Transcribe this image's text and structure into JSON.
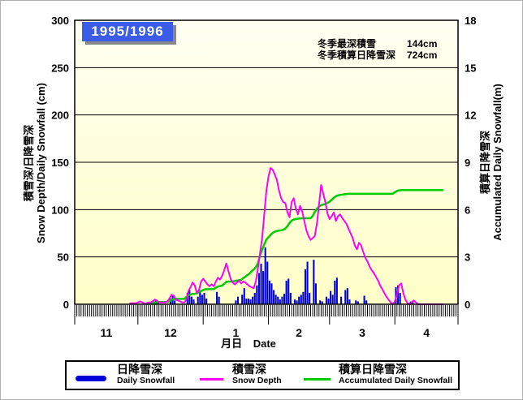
{
  "title": "1995/1996",
  "annotation": {
    "rows": [
      {
        "label": "冬季最深積雪",
        "value": "144cm"
      },
      {
        "label": "冬季積算日降雪深",
        "value": "724cm"
      }
    ]
  },
  "axes": {
    "left": {
      "title_jp": "積雪深/日降雪深",
      "title_en": "Snow Depth/Daily Snowfall (cm)",
      "ticks": [
        0,
        50,
        100,
        150,
        200,
        250,
        300
      ]
    },
    "right": {
      "title_jp": "積算日降雪深",
      "title_en": "Accumulated Daily Snowfall(m)",
      "ticks": [
        0,
        3,
        6,
        9,
        12,
        15,
        18
      ]
    },
    "x": {
      "label_jp": "月日",
      "label_en": "Date",
      "month_labels": [
        "11",
        "12",
        "1",
        "2",
        "3",
        "4"
      ]
    }
  },
  "chart_data": {
    "type": "composite",
    "title": "1995/1996",
    "x_unit": "day index from Nov 1",
    "days": 182,
    "month_boundaries": [
      0,
      30,
      61,
      92,
      121,
      152,
      182
    ],
    "month_labels": [
      "11",
      "12",
      "1",
      "2",
      "3",
      "4"
    ],
    "ylim_left": [
      0,
      300
    ],
    "ylim_right": [
      0,
      18
    ],
    "grid": "horizontal",
    "legend_position": "bottom",
    "plot_bg_top": "#fffff2",
    "plot_bg_bottom": "#ffffc8",
    "winter_max_snow_depth_cm": 144,
    "winter_total_daily_snowfall_cm": 724,
    "series": [
      {
        "name_jp": "日降雪深",
        "name_en": "Daily Snowfall",
        "type": "bar",
        "axis": "left",
        "unit": "cm",
        "color": "#0000d8",
        "values_by_day": {
          "34": 2,
          "35": 2,
          "37": 3,
          "38": 4,
          "39": 2,
          "45": 6,
          "46": 9,
          "47": 4,
          "53": 12,
          "54": 15,
          "55": 8,
          "56": 5,
          "58": 8,
          "59": 15,
          "60": 10,
          "61": 12,
          "62": 6,
          "67": 13,
          "68": 8,
          "76": 4,
          "77": 8,
          "79": 10,
          "80": 17,
          "81": 6,
          "82": 6,
          "83": 5,
          "84": 8,
          "85": 12,
          "86": 20,
          "87": 33,
          "88": 43,
          "89": 35,
          "90": 60,
          "91": 45,
          "92": 25,
          "93": 22,
          "94": 15,
          "95": 10,
          "96": 8,
          "97": 5,
          "98": 8,
          "99": 11,
          "100": 25,
          "101": 27,
          "102": 12,
          "104": 5,
          "105": 4,
          "106": 8,
          "107": 10,
          "108": 13,
          "109": 37,
          "110": 45,
          "111": 12,
          "113": 47,
          "114": 22,
          "116": 4,
          "117": 3,
          "119": 8,
          "120": 6,
          "121": 14,
          "122": 10,
          "123": 25,
          "124": 28,
          "126": 8,
          "128": 15,
          "129": 17,
          "130": 5,
          "133": 4,
          "134": 3,
          "137": 9,
          "138": 4,
          "152": 18,
          "153": 20,
          "154": 12,
          "159": 3,
          "160": 2
        }
      },
      {
        "name_jp": "積雪深",
        "name_en": "Snow Depth",
        "type": "line",
        "axis": "left",
        "unit": "cm",
        "color": "#ff00ff",
        "start_day": 26,
        "values": [
          1,
          1,
          1,
          1,
          2,
          3,
          2,
          1,
          1,
          2,
          2,
          3,
          5,
          4,
          2,
          2,
          2,
          2,
          3,
          6,
          10,
          9,
          5,
          4,
          3,
          2,
          2,
          5,
          14,
          18,
          23,
          20,
          12,
          15,
          24,
          27,
          24,
          21,
          19,
          21,
          19,
          24,
          28,
          26,
          30,
          36,
          43,
          35,
          27,
          23,
          21,
          23,
          25,
          22,
          24,
          23,
          21,
          19,
          18,
          17,
          24,
          38,
          54,
          70,
          95,
          120,
          135,
          144,
          142,
          137,
          131,
          120,
          112,
          108,
          107,
          97,
          92,
          108,
          112,
          101,
          95,
          104,
          98,
          88,
          78,
          72,
          68,
          70,
          72,
          85,
          105,
          126,
          117,
          108,
          96,
          90,
          93,
          97,
          88,
          93,
          95,
          91,
          88,
          85,
          80,
          75,
          70,
          62,
          58,
          65,
          62,
          55,
          49,
          45,
          40,
          36,
          33,
          29,
          25,
          20,
          16,
          12,
          8,
          5,
          2,
          0,
          3,
          10,
          20,
          22,
          12,
          5,
          1,
          0,
          2,
          4,
          2,
          0,
          0,
          0,
          0,
          0,
          0,
          0,
          0,
          0,
          0,
          0,
          0,
          0
        ]
      },
      {
        "name_jp": "積算日降雪深",
        "name_en": "Accumulated Daily Snowfall",
        "type": "line",
        "axis": "right",
        "unit": "m",
        "color": "#00cc00",
        "start_day": 34,
        "values": [
          0.02,
          0.04,
          0.04,
          0.07,
          0.11,
          0.13,
          0.14,
          0.14,
          0.14,
          0.14,
          0.14,
          0.2,
          0.29,
          0.33,
          0.34,
          0.34,
          0.34,
          0.34,
          0.34,
          0.46,
          0.56,
          0.62,
          0.66,
          0.66,
          0.7,
          0.78,
          0.84,
          0.9,
          0.95,
          0.95,
          0.96,
          0.96,
          0.96,
          1.05,
          1.12,
          1.15,
          1.18,
          1.3,
          1.42,
          1.44,
          1.44,
          1.45,
          1.47,
          1.5,
          1.52,
          1.55,
          1.65,
          1.75,
          1.85,
          1.95,
          2.1,
          2.2,
          2.35,
          2.6,
          3.1,
          3.45,
          3.8,
          4.1,
          4.25,
          4.4,
          4.52,
          4.6,
          4.65,
          4.67,
          4.69,
          4.72,
          4.8,
          4.95,
          5.15,
          5.3,
          5.37,
          5.4,
          5.42,
          5.44,
          5.45,
          5.45,
          5.45,
          5.45,
          5.45,
          5.6,
          5.85,
          6.05,
          6.2,
          6.28,
          6.32,
          6.35,
          6.42,
          6.5,
          6.62,
          6.75,
          6.85,
          6.9,
          6.93,
          6.95,
          6.97,
          6.99,
          7.0,
          7.0,
          7.0,
          7.0,
          7.0,
          7.0,
          7.0,
          7.0,
          7.0,
          7.0,
          7.0,
          7.0,
          7.0,
          7.0,
          7.0,
          7.0,
          7.0,
          7.0,
          7.0,
          7.0,
          7.0,
          7.0,
          7.1,
          7.18,
          7.22,
          7.23,
          7.24,
          7.24,
          7.24,
          7.24,
          7.24,
          7.24,
          7.24,
          7.24,
          7.24,
          7.24,
          7.24,
          7.24,
          7.24,
          7.24,
          7.24,
          7.24,
          7.24,
          7.24,
          7.24,
          7.24
        ]
      }
    ]
  },
  "legend": [
    {
      "jp": "日降雪深",
      "en": "Daily Snowfall"
    },
    {
      "jp": "積雪深",
      "en": "Snow Depth"
    },
    {
      "jp": "積算日降雪深",
      "en": "Accumulated Daily Snowfall"
    }
  ]
}
